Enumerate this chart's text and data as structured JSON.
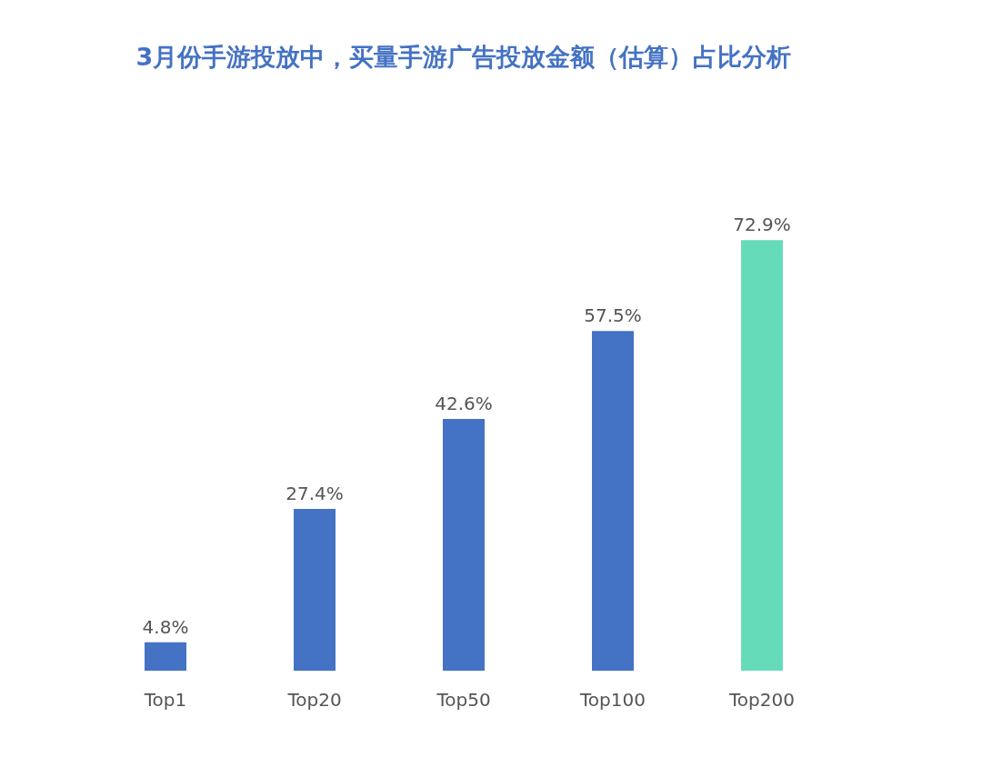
{
  "chart_data": {
    "type": "bar",
    "title": "3月份手游投放中，买量手游广告投放金额（估算）占比分析",
    "categories": [
      "Top1",
      "Top20",
      "Top50",
      "Top100",
      "Top200"
    ],
    "values": [
      4.8,
      27.4,
      42.6,
      57.5,
      72.9
    ],
    "colors": [
      "#4472c4",
      "#4472c4",
      "#4472c4",
      "#4472c4",
      "#66dbb9"
    ],
    "value_labels": [
      "4.8%",
      "27.4%",
      "42.6%",
      "57.5%",
      "72.9%"
    ],
    "tick_labels": "x",
    "grid": false
  }
}
